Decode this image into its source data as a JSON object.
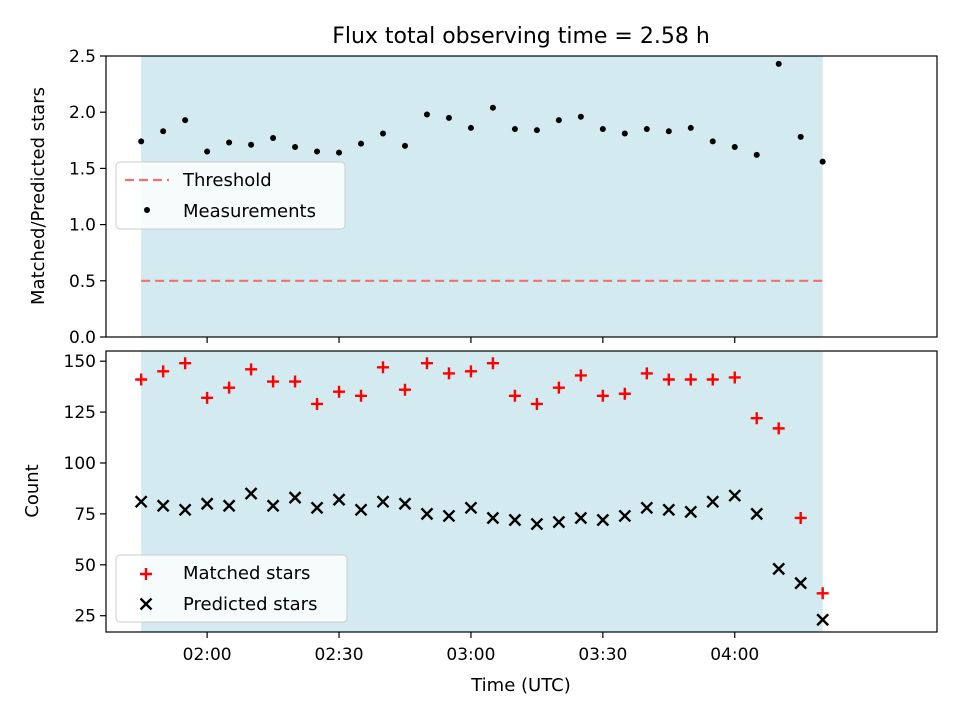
{
  "title": "Flux total observing time = 2.58 h",
  "xlabel": "Time (UTC)",
  "colors": {
    "shade": "#d3eaf0",
    "threshold": "#f07070",
    "matched": "#ff0000",
    "predicted": "#000000",
    "measurement": "#000000"
  },
  "chart_data": [
    {
      "type": "scatter",
      "ylabel": "Matched/Predicted stars",
      "ylim": [
        0.0,
        2.5
      ],
      "yticks": [
        0.0,
        0.5,
        1.0,
        1.5,
        2.0,
        2.5
      ],
      "ytick_labels": [
        "0.0",
        "0.5",
        "1.0",
        "1.5",
        "2.0",
        "2.5"
      ],
      "xlim": [
        "01:37",
        "04:46"
      ],
      "xticks": [
        "02:00",
        "02:30",
        "03:00",
        "03:30",
        "04:00"
      ],
      "shaded_span": [
        "01:45",
        "04:20"
      ],
      "threshold": 0.5,
      "legend": {
        "position": "center-left",
        "entries": [
          "Threshold",
          "Measurements"
        ]
      },
      "series": [
        {
          "name": "Measurements",
          "x": [
            "01:45",
            "01:50",
            "01:55",
            "02:00",
            "02:05",
            "02:10",
            "02:15",
            "02:20",
            "02:25",
            "02:30",
            "02:35",
            "02:40",
            "02:45",
            "02:50",
            "02:55",
            "03:00",
            "03:05",
            "03:10",
            "03:15",
            "03:20",
            "03:25",
            "03:30",
            "03:35",
            "03:40",
            "03:45",
            "03:50",
            "03:55",
            "04:00",
            "04:05",
            "04:10",
            "04:15",
            "04:20"
          ],
          "y": [
            1.74,
            1.83,
            1.93,
            1.65,
            1.73,
            1.71,
            1.77,
            1.69,
            1.65,
            1.64,
            1.72,
            1.81,
            1.7,
            1.98,
            1.95,
            1.86,
            2.04,
            1.85,
            1.84,
            1.93,
            1.96,
            1.85,
            1.81,
            1.85,
            1.83,
            1.86,
            1.74,
            1.69,
            1.62,
            2.43,
            1.78,
            1.56
          ]
        }
      ]
    },
    {
      "type": "scatter",
      "ylabel": "Count",
      "ylim": [
        17,
        155
      ],
      "yticks": [
        25,
        50,
        75,
        100,
        125,
        150
      ],
      "ytick_labels": [
        "25",
        "50",
        "75",
        "100",
        "125",
        "150"
      ],
      "xlim": [
        "01:37",
        "04:46"
      ],
      "xticks": [
        "02:00",
        "02:30",
        "03:00",
        "03:30",
        "04:00"
      ],
      "xtick_labels": [
        "02:00",
        "02:30",
        "03:00",
        "03:30",
        "04:00"
      ],
      "shaded_span": [
        "01:45",
        "04:20"
      ],
      "legend": {
        "position": "lower-left",
        "entries": [
          "Matched stars",
          "Predicted stars"
        ]
      },
      "series": [
        {
          "name": "Matched stars",
          "marker": "+",
          "x": [
            "01:45",
            "01:50",
            "01:55",
            "02:00",
            "02:05",
            "02:10",
            "02:15",
            "02:20",
            "02:25",
            "02:30",
            "02:35",
            "02:40",
            "02:45",
            "02:50",
            "02:55",
            "03:00",
            "03:05",
            "03:10",
            "03:15",
            "03:20",
            "03:25",
            "03:30",
            "03:35",
            "03:40",
            "03:45",
            "03:50",
            "03:55",
            "04:00",
            "04:05",
            "04:10",
            "04:15",
            "04:20"
          ],
          "y": [
            141,
            145,
            149,
            132,
            137,
            146,
            140,
            140,
            129,
            135,
            133,
            147,
            136,
            149,
            144,
            145,
            149,
            133,
            129,
            137,
            143,
            133,
            134,
            144,
            141,
            141,
            141,
            142,
            122,
            117,
            73,
            36
          ]
        },
        {
          "name": "Predicted stars",
          "marker": "x",
          "x": [
            "01:45",
            "01:50",
            "01:55",
            "02:00",
            "02:05",
            "02:10",
            "02:15",
            "02:20",
            "02:25",
            "02:30",
            "02:35",
            "02:40",
            "02:45",
            "02:50",
            "02:55",
            "03:00",
            "03:05",
            "03:10",
            "03:15",
            "03:20",
            "03:25",
            "03:30",
            "03:35",
            "03:40",
            "03:45",
            "03:50",
            "03:55",
            "04:00",
            "04:05",
            "04:10",
            "04:15",
            "04:20"
          ],
          "y": [
            81,
            79,
            77,
            80,
            79,
            85,
            79,
            83,
            78,
            82,
            77,
            81,
            80,
            75,
            74,
            78,
            73,
            72,
            70,
            71,
            73,
            72,
            74,
            78,
            77,
            76,
            81,
            84,
            75,
            48,
            41,
            23
          ]
        }
      ]
    }
  ]
}
